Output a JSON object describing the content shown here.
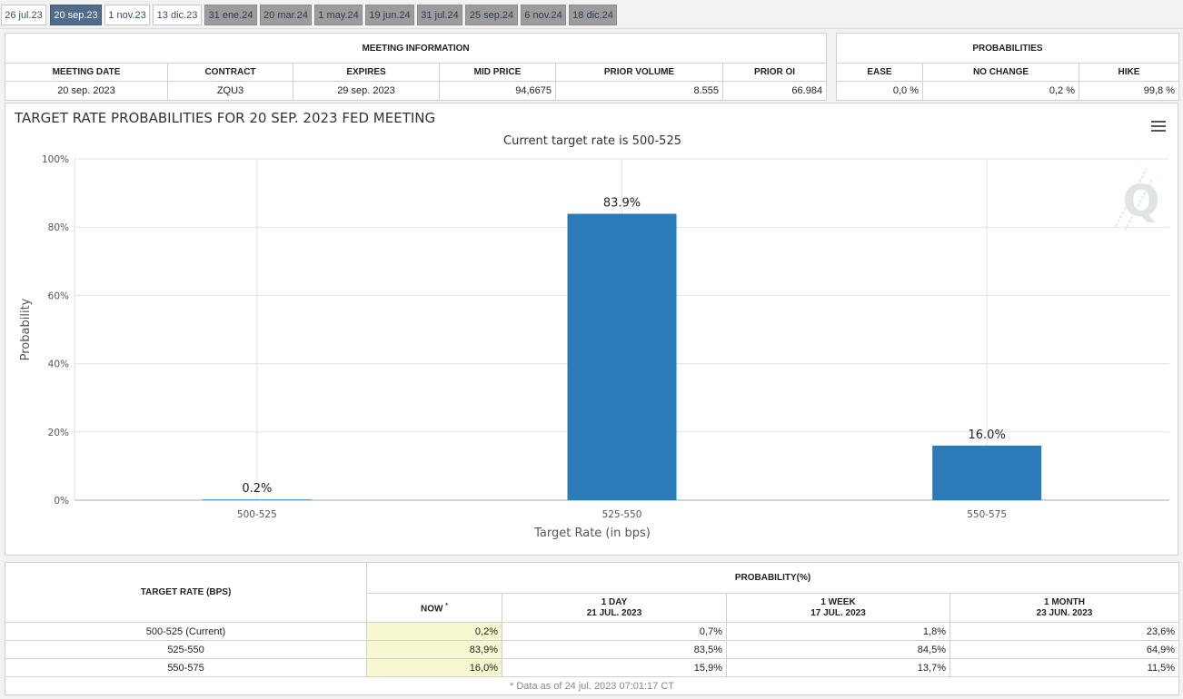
{
  "tabs": [
    {
      "label": "26 jul.23",
      "state": "normal"
    },
    {
      "label": "20 sep.23",
      "state": "active"
    },
    {
      "label": "1 nov.23",
      "state": "normal"
    },
    {
      "label": "13 dic.23",
      "state": "normal"
    },
    {
      "label": "31 ene.24",
      "state": "inactive"
    },
    {
      "label": "20 mar.24",
      "state": "inactive"
    },
    {
      "label": "1 may.24",
      "state": "inactive"
    },
    {
      "label": "19 jun.24",
      "state": "inactive"
    },
    {
      "label": "31 jul.24",
      "state": "inactive"
    },
    {
      "label": "25 sep.24",
      "state": "inactive"
    },
    {
      "label": "6 nov.24",
      "state": "inactive"
    },
    {
      "label": "18 dic.24",
      "state": "inactive"
    }
  ],
  "meeting_info": {
    "title": "MEETING INFORMATION",
    "headers": [
      "MEETING DATE",
      "CONTRACT",
      "EXPIRES",
      "MID PRICE",
      "PRIOR VOLUME",
      "PRIOR OI"
    ],
    "values": [
      "20 sep. 2023",
      "ZQU3",
      "29 sep. 2023",
      "94,6675",
      "8.555",
      "66.984"
    ]
  },
  "probabilities": {
    "title": "PROBABILITIES",
    "headers": [
      "EASE",
      "NO CHANGE",
      "HIKE"
    ],
    "values": [
      "0,0 %",
      "0,2 %",
      "99,8 %"
    ]
  },
  "chart_data": {
    "type": "bar",
    "title": "TARGET RATE PROBABILITIES FOR 20 SEP. 2023 FED MEETING",
    "subtitle": "Current target rate is 500-525",
    "categories": [
      "500-525",
      "525-550",
      "550-575"
    ],
    "values": [
      0.2,
      83.9,
      16.0
    ],
    "data_labels": [
      "0.2%",
      "83.9%",
      "16.0%"
    ],
    "xlabel": "Target Rate (in bps)",
    "ylabel": "Probability",
    "ylim": [
      0,
      100
    ],
    "yticks": [
      0,
      20,
      40,
      60,
      80,
      100
    ],
    "ytick_labels": [
      "0%",
      "20%",
      "40%",
      "60%",
      "80%",
      "100%"
    ],
    "bar_color": "#2b7bb9",
    "grid": true
  },
  "detail": {
    "target_rate_header": "TARGET RATE (BPS)",
    "probability_header": "PROBABILITY(%)",
    "col_now": "NOW",
    "col_now_mark": "*",
    "cols": [
      {
        "line1": "1 DAY",
        "line2": "21 JUL. 2023"
      },
      {
        "line1": "1 WEEK",
        "line2": "17 JUL. 2023"
      },
      {
        "line1": "1 MONTH",
        "line2": "23 JUN. 2023"
      }
    ],
    "rows": [
      {
        "rate": "500-525 (Current)",
        "now": "0,2%",
        "day": "0,7%",
        "week": "1,8%",
        "month": "23,6%"
      },
      {
        "rate": "525-550",
        "now": "83,9%",
        "day": "83,5%",
        "week": "84,5%",
        "month": "64,9%"
      },
      {
        "rate": "550-575",
        "now": "16,0%",
        "day": "15,9%",
        "week": "13,7%",
        "month": "11,5%"
      }
    ],
    "footnote": "* Data as of 24 jul. 2023 07:01:17 CT"
  }
}
